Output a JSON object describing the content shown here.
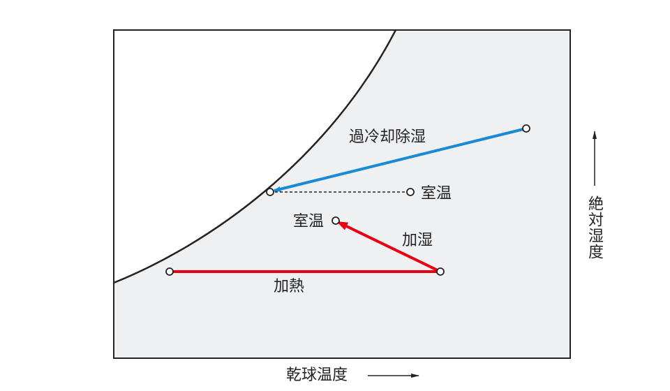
{
  "labels": {
    "cool_dehumidify": "過冷却除湿",
    "room_temp_a": "室温",
    "room_temp_b": "室温",
    "humidify": "加湿",
    "heat": "加熱"
  },
  "axes": {
    "x_label": "乾球温度",
    "y_label": "絶対湿度"
  }
}
